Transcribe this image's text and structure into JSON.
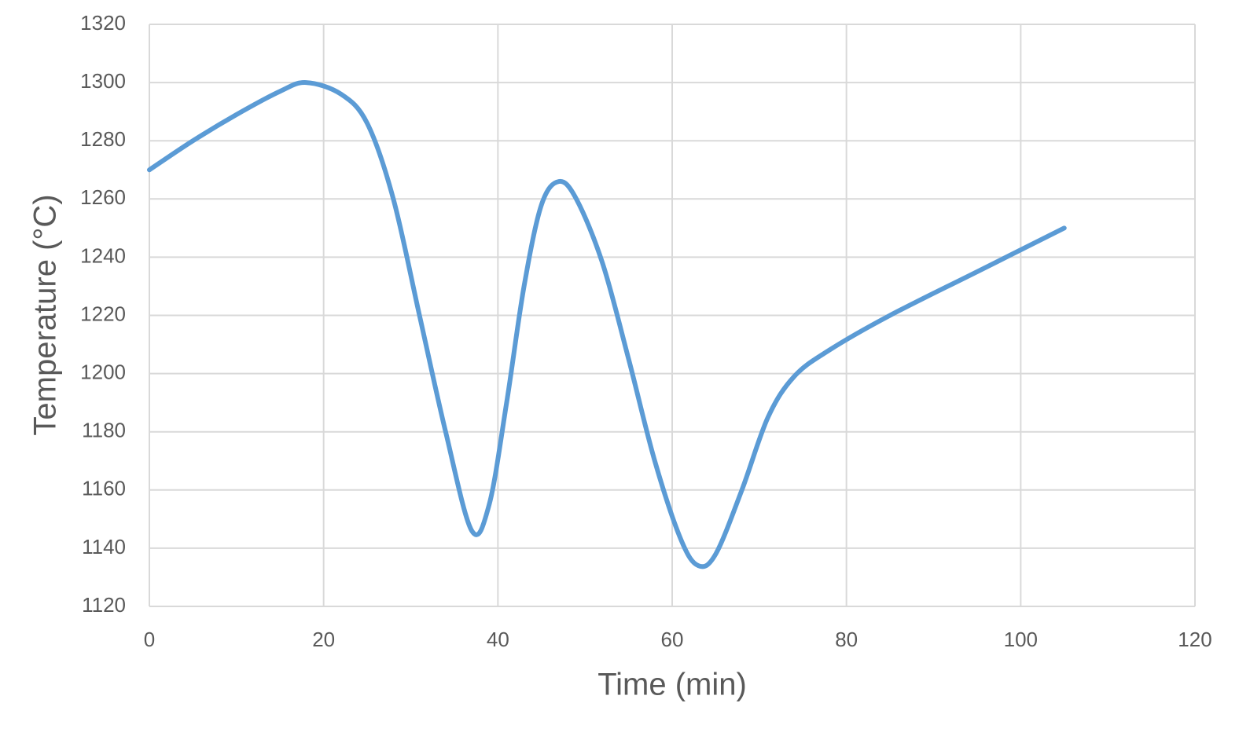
{
  "chart_data": {
    "type": "line",
    "x_label": "Time (min)",
    "y_label": "Temperature (°C)",
    "series": [
      {
        "name": "Temperature",
        "color": "#5b9bd5",
        "x": [
          0,
          5,
          10,
          15,
          18,
          22,
          25,
          28,
          31,
          34,
          37,
          39,
          41,
          43,
          45,
          47,
          49,
          52,
          55,
          58,
          61,
          63,
          65,
          68,
          71,
          74,
          78,
          85,
          95,
          105
        ],
        "values": [
          1270,
          1280,
          1289,
          1297,
          1300,
          1296,
          1286,
          1260,
          1220,
          1180,
          1146,
          1155,
          1190,
          1230,
          1258,
          1266,
          1260,
          1238,
          1205,
          1170,
          1143,
          1134,
          1138,
          1160,
          1185,
          1199,
          1208,
          1220,
          1235,
          1250
        ]
      }
    ],
    "xlim": [
      0,
      120
    ],
    "xticks": [
      0,
      20,
      40,
      60,
      80,
      100,
      120
    ],
    "ylim": [
      1120,
      1320
    ],
    "yticks": [
      1120,
      1140,
      1160,
      1180,
      1200,
      1220,
      1240,
      1260,
      1280,
      1300,
      1320
    ],
    "grid": true
  }
}
